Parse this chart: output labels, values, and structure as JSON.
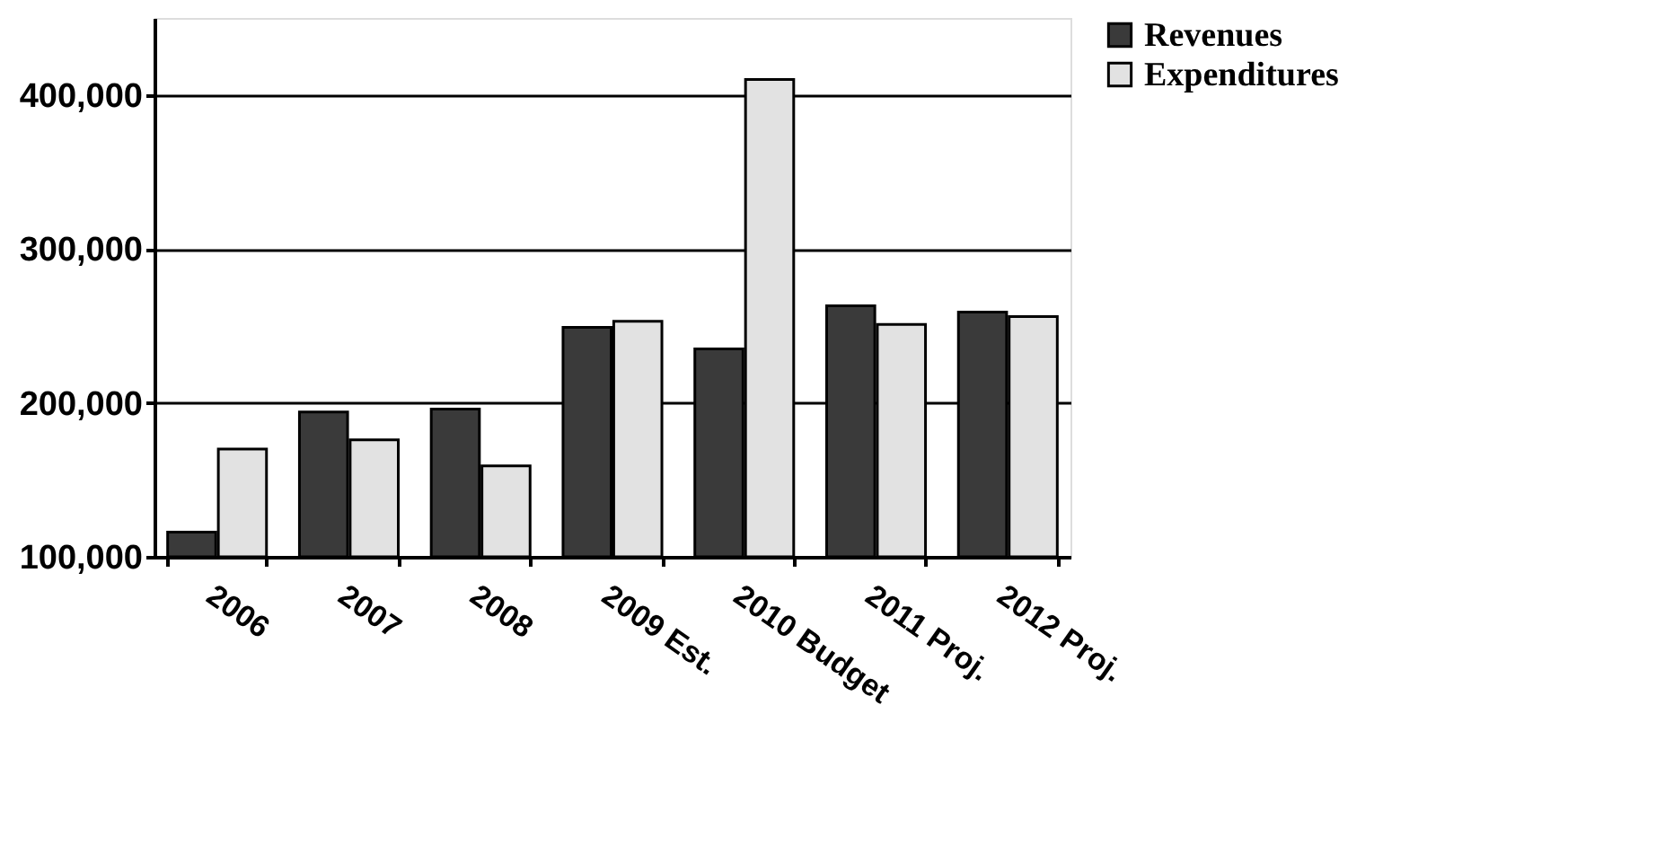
{
  "chart_data": {
    "type": "bar",
    "categories": [
      "2006",
      "2007",
      "2008",
      "2009 Est.",
      "2010 Budget",
      "2011 Proj.",
      "2012 Proj."
    ],
    "series": [
      {
        "name": "Revenues",
        "color": "#3a3a3a",
        "values": [
          116000,
          194000,
          196000,
          249000,
          235000,
          263000,
          259000
        ]
      },
      {
        "name": "Expenditures",
        "color": "#e2e2e2",
        "values": [
          170000,
          176000,
          159000,
          253000,
          410000,
          251000,
          256000
        ]
      }
    ],
    "ylim": [
      100000,
      450000
    ],
    "yticks": [
      {
        "value": 100000,
        "label": "100,000"
      },
      {
        "value": 200000,
        "label": "200,000"
      },
      {
        "value": 300000,
        "label": "300,000"
      },
      {
        "value": 400000,
        "label": "400,000"
      }
    ],
    "grid": "y",
    "legend": "right"
  }
}
